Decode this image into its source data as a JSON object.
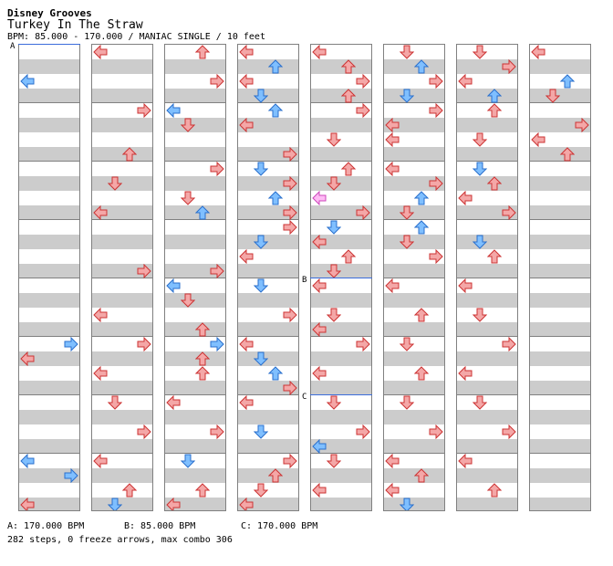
{
  "header": {
    "game_title": "Disney Grooves",
    "song_title": "Turkey In The Straw",
    "info_line": "BPM: 85.000 - 170.000 / MANIAC SINGLE / 10 feet"
  },
  "markers": [
    {
      "label": "A",
      "column": 0,
      "row": 0
    },
    {
      "label": "B",
      "column": 4,
      "row": 16
    },
    {
      "label": "C",
      "column": 4,
      "row": 24
    }
  ],
  "colors": {
    "red": "#f4a7a7",
    "red_stroke": "#cc3333",
    "blue": "#7fbfff",
    "blue_stroke": "#2a6fcc",
    "pink": "#ffbbf5",
    "pink_stroke": "#cc44bb",
    "bpm_line": "#3b6ddb"
  },
  "icons": {
    "left": "left-arrow-icon",
    "down": "down-arrow-icon",
    "up": "up-arrow-icon",
    "right": "right-arrow-icon"
  },
  "bpm_legend": {
    "a": "A: 170.000 BPM",
    "b": "B: 85.000 BPM",
    "c": "C: 170.000 BPM"
  },
  "stats": "282 steps, 0 freeze arrows, max combo 306",
  "note_columns": [
    [
      [
        2,
        0,
        "b"
      ],
      [
        20,
        3,
        "b"
      ],
      [
        21,
        0,
        "r"
      ],
      [
        28,
        0,
        "b"
      ],
      [
        29,
        3,
        "b"
      ],
      [
        31,
        0,
        "r"
      ]
    ],
    [
      [
        0,
        0,
        "r"
      ],
      [
        4,
        3,
        "r"
      ],
      [
        7,
        2,
        "r"
      ],
      [
        9,
        1,
        "r"
      ],
      [
        11,
        0,
        "r"
      ],
      [
        15,
        3,
        "r"
      ],
      [
        18,
        0,
        "r"
      ],
      [
        20,
        3,
        "r"
      ],
      [
        22,
        0,
        "r"
      ],
      [
        24,
        1,
        "r"
      ],
      [
        26,
        3,
        "r"
      ],
      [
        28,
        0,
        "r"
      ],
      [
        30,
        2,
        "r"
      ],
      [
        31,
        1,
        "b"
      ]
    ],
    [
      [
        0,
        2,
        "r"
      ],
      [
        2,
        3,
        "r"
      ],
      [
        4,
        0,
        "b"
      ],
      [
        5,
        1,
        "r"
      ],
      [
        8,
        3,
        "r"
      ],
      [
        10,
        1,
        "r"
      ],
      [
        11,
        2,
        "b"
      ],
      [
        15,
        3,
        "r"
      ],
      [
        16,
        0,
        "b"
      ],
      [
        17,
        1,
        "r"
      ],
      [
        19,
        2,
        "r"
      ],
      [
        20,
        3,
        "b"
      ],
      [
        21,
        2,
        "r"
      ],
      [
        22,
        2,
        "r"
      ],
      [
        24,
        0,
        "r"
      ],
      [
        26,
        3,
        "r"
      ],
      [
        28,
        1,
        "b"
      ],
      [
        30,
        2,
        "r"
      ],
      [
        31,
        0,
        "r"
      ]
    ],
    [
      [
        0,
        0,
        "r"
      ],
      [
        1,
        2,
        "b"
      ],
      [
        2,
        0,
        "r"
      ],
      [
        3,
        1,
        "b"
      ],
      [
        4,
        2,
        "b"
      ],
      [
        5,
        0,
        "r"
      ],
      [
        7,
        3,
        "r"
      ],
      [
        8,
        1,
        "b"
      ],
      [
        9,
        3,
        "r"
      ],
      [
        10,
        2,
        "b"
      ],
      [
        11,
        3,
        "r"
      ],
      [
        12,
        3,
        "r"
      ],
      [
        13,
        1,
        "b"
      ],
      [
        14,
        0,
        "r"
      ],
      [
        16,
        1,
        "b"
      ],
      [
        18,
        3,
        "r"
      ],
      [
        20,
        0,
        "r"
      ],
      [
        21,
        1,
        "b"
      ],
      [
        22,
        2,
        "b"
      ],
      [
        23,
        3,
        "r"
      ],
      [
        24,
        0,
        "r"
      ],
      [
        26,
        1,
        "b"
      ],
      [
        28,
        3,
        "r"
      ],
      [
        29,
        2,
        "r"
      ],
      [
        30,
        1,
        "r"
      ],
      [
        31,
        0,
        "r"
      ]
    ],
    [
      [
        0,
        0,
        "r"
      ],
      [
        1,
        2,
        "r"
      ],
      [
        2,
        3,
        "r"
      ],
      [
        3,
        2,
        "r"
      ],
      [
        4,
        3,
        "r"
      ],
      [
        6,
        1,
        "r"
      ],
      [
        8,
        2,
        "r"
      ],
      [
        9,
        1,
        "r"
      ],
      [
        10,
        0,
        "p"
      ],
      [
        11,
        3,
        "r"
      ],
      [
        12,
        1,
        "b"
      ],
      [
        13,
        0,
        "r"
      ],
      [
        14,
        2,
        "r"
      ],
      [
        15,
        1,
        "r"
      ],
      [
        16,
        0,
        "r"
      ],
      [
        18,
        1,
        "r"
      ],
      [
        19,
        0,
        "r"
      ],
      [
        20,
        3,
        "r"
      ],
      [
        22,
        0,
        "r"
      ],
      [
        24,
        1,
        "r"
      ],
      [
        26,
        3,
        "r"
      ],
      [
        27,
        0,
        "b"
      ],
      [
        28,
        1,
        "r"
      ],
      [
        30,
        0,
        "r"
      ]
    ],
    [
      [
        0,
        1,
        "r"
      ],
      [
        1,
        2,
        "b"
      ],
      [
        2,
        3,
        "r"
      ],
      [
        3,
        1,
        "b"
      ],
      [
        4,
        3,
        "r"
      ],
      [
        5,
        0,
        "r"
      ],
      [
        6,
        0,
        "r"
      ],
      [
        8,
        0,
        "r"
      ],
      [
        9,
        3,
        "r"
      ],
      [
        10,
        2,
        "b"
      ],
      [
        11,
        1,
        "r"
      ],
      [
        12,
        2,
        "b"
      ],
      [
        13,
        1,
        "r"
      ],
      [
        14,
        3,
        "r"
      ],
      [
        16,
        0,
        "r"
      ],
      [
        18,
        2,
        "r"
      ],
      [
        20,
        1,
        "r"
      ],
      [
        22,
        2,
        "r"
      ],
      [
        24,
        1,
        "r"
      ],
      [
        26,
        3,
        "r"
      ],
      [
        28,
        0,
        "r"
      ],
      [
        29,
        2,
        "r"
      ],
      [
        30,
        0,
        "r"
      ],
      [
        31,
        1,
        "b"
      ]
    ],
    [
      [
        0,
        1,
        "r"
      ],
      [
        1,
        3,
        "r"
      ],
      [
        2,
        0,
        "r"
      ],
      [
        3,
        2,
        "b"
      ],
      [
        4,
        2,
        "r"
      ],
      [
        6,
        1,
        "r"
      ],
      [
        8,
        1,
        "b"
      ],
      [
        9,
        2,
        "r"
      ],
      [
        10,
        0,
        "r"
      ],
      [
        11,
        3,
        "r"
      ],
      [
        13,
        1,
        "b"
      ],
      [
        14,
        2,
        "r"
      ],
      [
        16,
        0,
        "r"
      ],
      [
        18,
        1,
        "r"
      ],
      [
        20,
        3,
        "r"
      ],
      [
        22,
        0,
        "r"
      ],
      [
        24,
        1,
        "r"
      ],
      [
        26,
        3,
        "r"
      ],
      [
        28,
        0,
        "r"
      ],
      [
        30,
        2,
        "r"
      ]
    ],
    [
      [
        0,
        0,
        "r"
      ],
      [
        2,
        2,
        "b"
      ],
      [
        3,
        1,
        "r"
      ],
      [
        5,
        3,
        "r"
      ],
      [
        6,
        0,
        "r"
      ],
      [
        7,
        2,
        "r"
      ]
    ]
  ]
}
